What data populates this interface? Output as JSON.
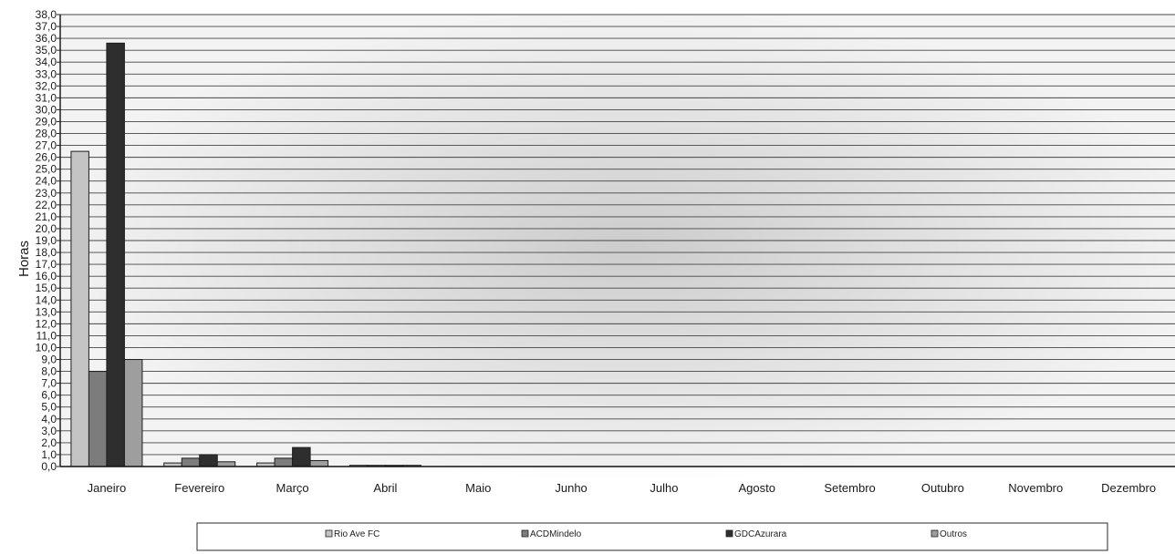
{
  "chart_data": {
    "type": "bar",
    "title": "",
    "xlabel": "",
    "ylabel": "Horas",
    "ylim": [
      0,
      38
    ],
    "ytick_step": 1,
    "ytick_labels": [
      "0,0",
      "1,0",
      "2,0",
      "3,0",
      "4,0",
      "5,0",
      "6,0",
      "7,0",
      "8,0",
      "9,0",
      "10,0",
      "11,0",
      "12,0",
      "13,0",
      "14,0",
      "15,0",
      "16,0",
      "17,0",
      "18,0",
      "19,0",
      "20,0",
      "21,0",
      "22,0",
      "23,0",
      "24,0",
      "25,0",
      "26,0",
      "27,0",
      "28,0",
      "29,0",
      "30,0",
      "31,0",
      "32,0",
      "33,0",
      "34,0",
      "35,0",
      "36,0",
      "37,0",
      "38,0"
    ],
    "grid": true,
    "legend_position": "bottom",
    "categories": [
      "Janeiro",
      "Fevereiro",
      "Março",
      "Abril",
      "Maio",
      "Junho",
      "Julho",
      "Agosto",
      "Setembro",
      "Outubro",
      "Novembro",
      "Dezembro"
    ],
    "series": [
      {
        "name": "Rio Ave FC",
        "color": "#c4c4c4",
        "values": [
          26.5,
          0.3,
          0.3,
          0.1,
          0,
          0,
          0,
          0,
          0,
          0,
          0,
          0
        ]
      },
      {
        "name": "ACDMindelo",
        "color": "#7c7c7c",
        "values": [
          8.0,
          0.7,
          0.7,
          0.1,
          0,
          0,
          0,
          0,
          0,
          0,
          0,
          0
        ]
      },
      {
        "name": "GDCAzurara",
        "color": "#2e2e2e",
        "values": [
          35.6,
          1.0,
          1.6,
          0.1,
          0,
          0,
          0,
          0,
          0,
          0,
          0,
          0
        ]
      },
      {
        "name": "Outros",
        "color": "#9e9e9e",
        "values": [
          9.0,
          0.4,
          0.5,
          0.1,
          0,
          0,
          0,
          0,
          0,
          0,
          0,
          0
        ]
      }
    ]
  }
}
